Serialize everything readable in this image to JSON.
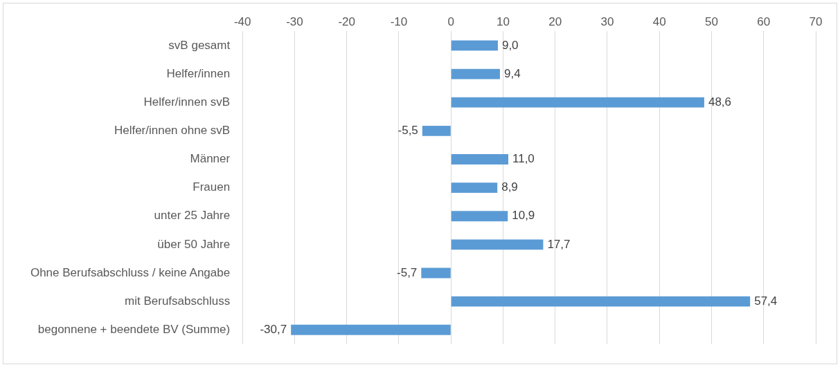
{
  "chart_data": {
    "type": "bar",
    "orientation": "horizontal",
    "categories": [
      "svB gesamt",
      "Helfer/innen",
      "Helfer/innen svB",
      "Helfer/innen ohne svB",
      "Männer",
      "Frauen",
      "unter 25 Jahre",
      "über 50 Jahre",
      "Ohne Berufsabschluss / keine Angabe",
      "mit Berufsabschluss",
      "begonnene + beendete BV (Summe)"
    ],
    "values": [
      9.0,
      9.4,
      48.6,
      -5.5,
      11.0,
      8.9,
      10.9,
      17.7,
      -5.7,
      57.4,
      -30.7
    ],
    "value_labels": [
      "9,0",
      "9,4",
      "48,6",
      "-5,5",
      "11,0",
      "8,9",
      "10,9",
      "17,7",
      "-5,7",
      "57,4",
      "-30,7"
    ],
    "color": "#5b9bd5",
    "xlim": [
      -40,
      70
    ],
    "xticks": [
      -40,
      -30,
      -20,
      -10,
      0,
      10,
      20,
      30,
      40,
      50,
      60,
      70
    ],
    "grid": "x",
    "legend": false
  }
}
